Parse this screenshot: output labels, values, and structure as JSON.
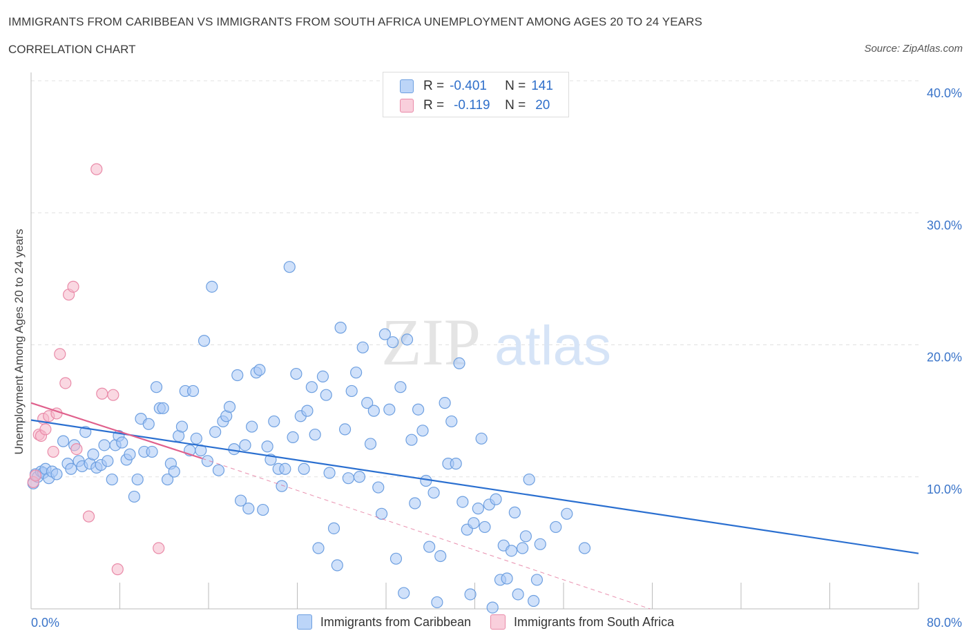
{
  "header": {
    "title": "IMMIGRANTS FROM CARIBBEAN VS IMMIGRANTS FROM SOUTH AFRICA UNEMPLOYMENT AMONG AGES 20 TO 24 YEARS",
    "subtitle": "CORRELATION CHART",
    "source": "Source: ZipAtlas.com"
  },
  "watermark": {
    "zip": "ZIP",
    "atlas": "atlas"
  },
  "legend": {
    "rows": [
      {
        "r_label": "R =",
        "r_value": "-0.401",
        "n_label": "N =",
        "n_value": "141",
        "color": "#a9c8f5"
      },
      {
        "r_label": "R =",
        "r_value": "-0.119",
        "n_label": "N =",
        "n_value": "20",
        "color": "#f5b8cb"
      }
    ]
  },
  "colors": {
    "blue_fill": "#a9c8f5",
    "blue_stroke": "#6d9fe0",
    "blue_line": "#2a6fd0",
    "pink_fill": "#f5b8cb",
    "pink_stroke": "#e98aa8",
    "pink_line": "#e0608c",
    "grid": "#e0e0e0",
    "tick_text": "#3a74c9"
  },
  "chart_data": {
    "type": "scatter",
    "title": "IMMIGRANTS FROM CARIBBEAN VS IMMIGRANTS FROM SOUTH AFRICA UNEMPLOYMENT AMONG AGES 20 TO 24 YEARS",
    "subtitle": "CORRELATION CHART",
    "xlabel": "",
    "ylabel": "Unemployment Among Ages 20 to 24 years",
    "xlim": [
      0,
      80
    ],
    "ylim": [
      0,
      40
    ],
    "x_tick_labels": [
      "0.0%",
      "80.0%"
    ],
    "y_tick_labels": [
      "10.0%",
      "20.0%",
      "30.0%",
      "40.0%"
    ],
    "y_ticks": [
      10,
      20,
      30,
      40
    ],
    "grid": true,
    "legend_position": "top-center",
    "series": [
      {
        "name": "Immigrants from Caribbean",
        "R": -0.401,
        "N": 141,
        "trend": {
          "x": [
            0,
            80
          ],
          "y": [
            14.3,
            4.2
          ]
        },
        "points": [
          [
            0.2,
            9.5
          ],
          [
            0.4,
            10.2
          ],
          [
            0.6,
            10.0
          ],
          [
            0.9,
            10.4
          ],
          [
            1.1,
            10.3
          ],
          [
            1.3,
            10.6
          ],
          [
            1.6,
            9.9
          ],
          [
            1.9,
            10.4
          ],
          [
            2.3,
            10.2
          ],
          [
            2.9,
            12.7
          ],
          [
            3.3,
            11.0
          ],
          [
            3.6,
            10.6
          ],
          [
            3.9,
            12.4
          ],
          [
            4.3,
            11.2
          ],
          [
            4.6,
            10.8
          ],
          [
            4.9,
            13.4
          ],
          [
            5.3,
            11.0
          ],
          [
            5.6,
            11.7
          ],
          [
            5.9,
            10.7
          ],
          [
            6.3,
            10.9
          ],
          [
            6.6,
            12.4
          ],
          [
            6.9,
            11.2
          ],
          [
            7.3,
            9.8
          ],
          [
            7.6,
            12.4
          ],
          [
            7.9,
            13.1
          ],
          [
            8.2,
            12.6
          ],
          [
            8.6,
            11.3
          ],
          [
            8.9,
            11.7
          ],
          [
            9.3,
            8.5
          ],
          [
            9.6,
            9.8
          ],
          [
            9.9,
            14.4
          ],
          [
            10.2,
            11.9
          ],
          [
            10.6,
            14.0
          ],
          [
            10.9,
            11.9
          ],
          [
            11.3,
            16.8
          ],
          [
            11.6,
            15.2
          ],
          [
            11.9,
            15.2
          ],
          [
            12.3,
            9.8
          ],
          [
            12.6,
            11.0
          ],
          [
            12.9,
            10.4
          ],
          [
            13.3,
            13.1
          ],
          [
            13.6,
            13.8
          ],
          [
            13.9,
            16.5
          ],
          [
            14.3,
            12.0
          ],
          [
            14.6,
            16.5
          ],
          [
            14.9,
            12.9
          ],
          [
            15.3,
            12.0
          ],
          [
            15.6,
            20.3
          ],
          [
            15.9,
            11.2
          ],
          [
            16.3,
            24.4
          ],
          [
            16.6,
            13.4
          ],
          [
            16.9,
            10.5
          ],
          [
            17.3,
            14.2
          ],
          [
            17.6,
            14.6
          ],
          [
            17.9,
            15.3
          ],
          [
            18.3,
            12.1
          ],
          [
            18.6,
            17.7
          ],
          [
            18.9,
            8.2
          ],
          [
            19.3,
            12.4
          ],
          [
            19.6,
            7.6
          ],
          [
            19.9,
            13.8
          ],
          [
            20.3,
            17.9
          ],
          [
            20.6,
            18.1
          ],
          [
            20.9,
            7.5
          ],
          [
            21.3,
            12.3
          ],
          [
            21.6,
            11.3
          ],
          [
            21.9,
            14.2
          ],
          [
            22.3,
            10.6
          ],
          [
            22.6,
            9.3
          ],
          [
            22.9,
            10.6
          ],
          [
            23.3,
            25.9
          ],
          [
            23.6,
            13.0
          ],
          [
            23.9,
            17.8
          ],
          [
            24.3,
            14.6
          ],
          [
            24.6,
            10.6
          ],
          [
            24.9,
            15.0
          ],
          [
            25.3,
            16.8
          ],
          [
            25.6,
            13.2
          ],
          [
            25.9,
            4.6
          ],
          [
            26.3,
            17.6
          ],
          [
            26.6,
            16.2
          ],
          [
            26.9,
            10.3
          ],
          [
            27.3,
            6.1
          ],
          [
            27.6,
            3.3
          ],
          [
            27.9,
            21.3
          ],
          [
            28.3,
            13.6
          ],
          [
            28.6,
            9.9
          ],
          [
            28.9,
            16.5
          ],
          [
            29.3,
            17.9
          ],
          [
            29.6,
            10.0
          ],
          [
            29.9,
            19.8
          ],
          [
            30.3,
            15.6
          ],
          [
            30.6,
            12.5
          ],
          [
            30.9,
            15.0
          ],
          [
            31.3,
            9.2
          ],
          [
            31.6,
            7.2
          ],
          [
            31.9,
            20.8
          ],
          [
            32.3,
            15.1
          ],
          [
            32.6,
            20.2
          ],
          [
            32.9,
            3.8
          ],
          [
            33.3,
            16.8
          ],
          [
            33.6,
            1.2
          ],
          [
            33.9,
            20.4
          ],
          [
            34.3,
            12.8
          ],
          [
            34.6,
            8.0
          ],
          [
            34.9,
            15.1
          ],
          [
            35.3,
            13.5
          ],
          [
            35.6,
            9.7
          ],
          [
            35.9,
            4.7
          ],
          [
            36.3,
            8.8
          ],
          [
            36.6,
            0.5
          ],
          [
            36.9,
            4.0
          ],
          [
            37.3,
            15.6
          ],
          [
            37.6,
            11.0
          ],
          [
            37.9,
            14.2
          ],
          [
            38.3,
            11.0
          ],
          [
            38.6,
            18.6
          ],
          [
            38.9,
            8.1
          ],
          [
            39.3,
            6.0
          ],
          [
            39.6,
            1.1
          ],
          [
            39.9,
            6.5
          ],
          [
            40.3,
            7.6
          ],
          [
            40.6,
            12.9
          ],
          [
            40.9,
            6.2
          ],
          [
            41.3,
            7.9
          ],
          [
            41.6,
            0.1
          ],
          [
            41.9,
            8.3
          ],
          [
            42.3,
            2.2
          ],
          [
            42.6,
            4.8
          ],
          [
            42.9,
            2.3
          ],
          [
            43.3,
            4.4
          ],
          [
            43.6,
            7.3
          ],
          [
            43.9,
            1.1
          ],
          [
            44.3,
            4.6
          ],
          [
            44.6,
            5.5
          ],
          [
            44.9,
            9.8
          ],
          [
            45.3,
            0.6
          ],
          [
            45.6,
            2.2
          ],
          [
            45.9,
            4.9
          ],
          [
            47.3,
            6.2
          ],
          [
            48.3,
            7.2
          ],
          [
            49.9,
            4.6
          ]
        ]
      },
      {
        "name": "Immigrants from South Africa",
        "R": -0.119,
        "N": 20,
        "trend": {
          "x": [
            0,
            15.4
          ],
          "y": [
            15.6,
            11.4
          ]
        },
        "trend_extended": {
          "x": [
            15.4,
            55.8
          ],
          "y": [
            11.4,
            0
          ]
        },
        "points": [
          [
            0.2,
            9.6
          ],
          [
            0.4,
            10.1
          ],
          [
            0.7,
            13.2
          ],
          [
            0.9,
            13.1
          ],
          [
            1.1,
            14.4
          ],
          [
            1.3,
            13.6
          ],
          [
            1.6,
            14.6
          ],
          [
            2.0,
            11.9
          ],
          [
            2.3,
            14.8
          ],
          [
            2.6,
            19.3
          ],
          [
            3.1,
            17.1
          ],
          [
            3.4,
            23.8
          ],
          [
            3.8,
            24.4
          ],
          [
            4.1,
            12.1
          ],
          [
            5.2,
            7.0
          ],
          [
            5.9,
            33.3
          ],
          [
            6.4,
            16.3
          ],
          [
            7.4,
            16.2
          ],
          [
            7.8,
            3.0
          ],
          [
            11.5,
            4.6
          ]
        ]
      }
    ]
  }
}
